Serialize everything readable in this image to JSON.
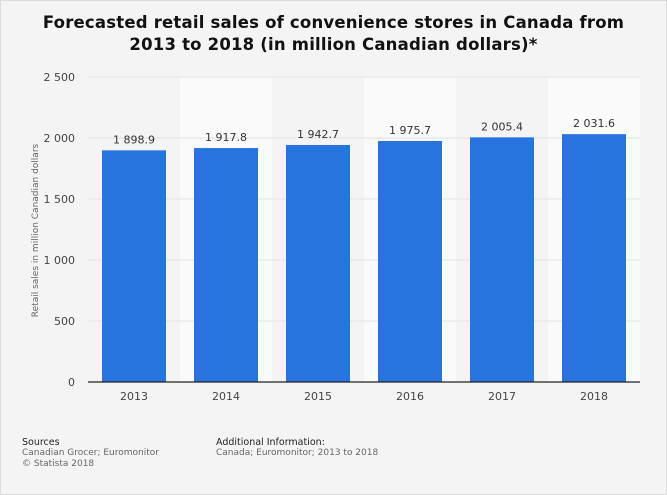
{
  "title": "Forecasted retail sales of convenience stores in Canada from 2013 to 2018 (in million Canadian dollars)*",
  "chart_data": {
    "type": "bar",
    "categories": [
      "2013",
      "2014",
      "2015",
      "2016",
      "2017",
      "2018"
    ],
    "values": [
      1898.9,
      1917.8,
      1942.7,
      1975.7,
      2005.4,
      2031.6
    ],
    "value_labels": [
      "1 898.9",
      "1 917.8",
      "1 942.7",
      "1 975.7",
      "2 005.4",
      "2 031.6"
    ],
    "title": "Forecasted retail sales of convenience stores in Canada from 2013 to 2018 (in million Canadian dollars)*",
    "xlabel": "",
    "ylabel": "Retail sales in million Canadian dollars",
    "ylim": [
      0,
      2500
    ],
    "yticks": [
      0,
      500,
      1000,
      1500,
      2000,
      2500
    ],
    "ytick_labels": [
      "0",
      "500",
      "1 000",
      "1 500",
      "2 000",
      "2 500"
    ],
    "grid": true,
    "bar_color": "#2874df"
  },
  "footer": {
    "sources_heading": "Sources",
    "sources_line1": "Canadian Grocer; Euromonitor",
    "sources_line2": "© Statista 2018",
    "info_heading": "Additional Information:",
    "info_line1": "Canada; Euromonitor; 2013 to 2018"
  }
}
